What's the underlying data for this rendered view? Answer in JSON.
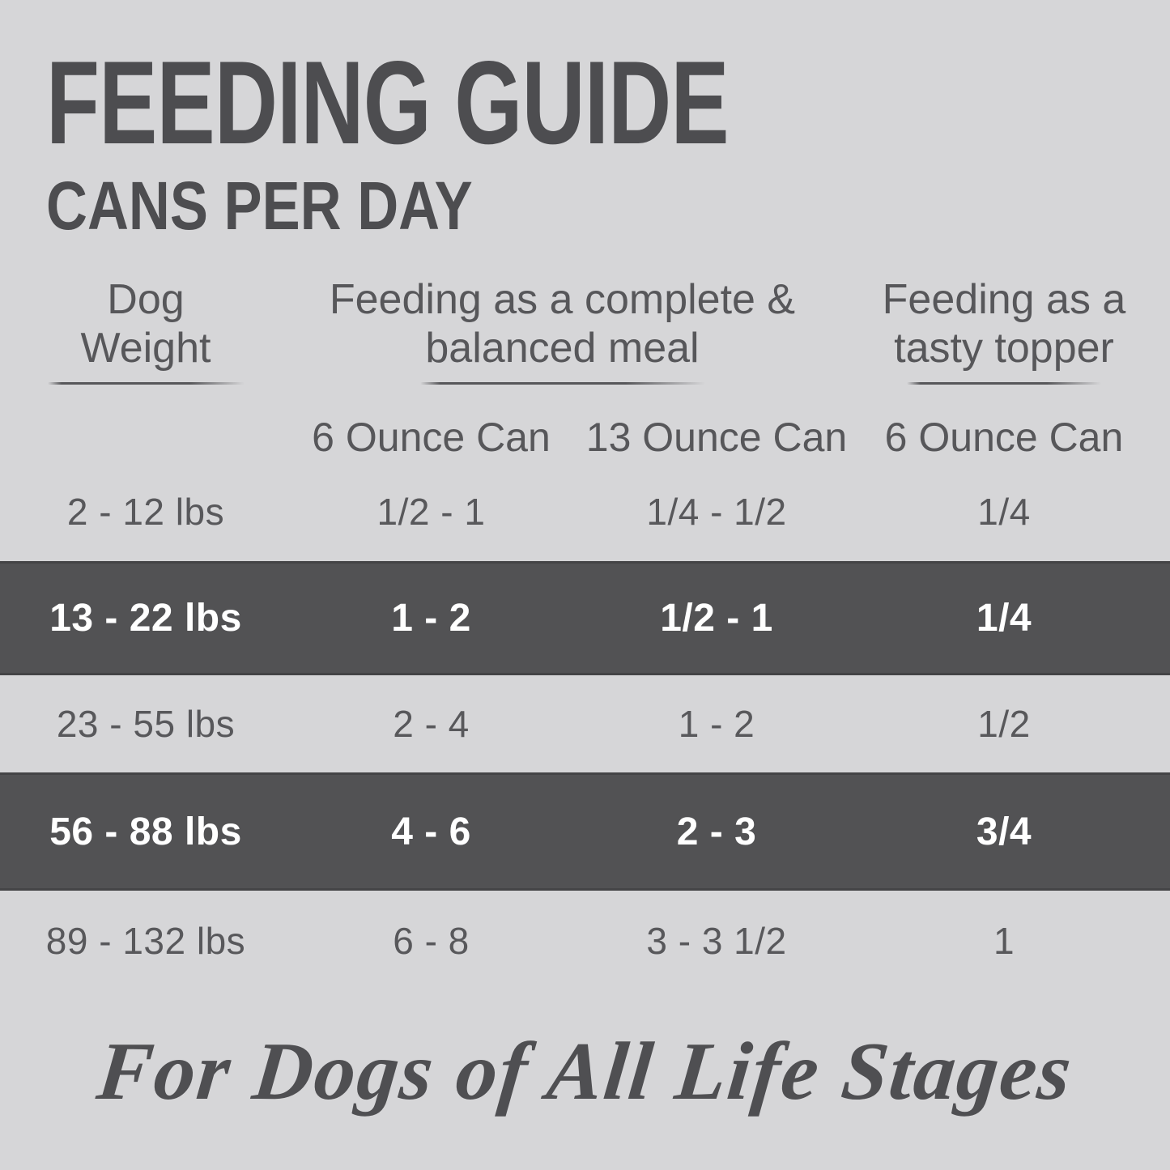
{
  "colors": {
    "background": "#d6d6d8",
    "highlight_band": "#525254",
    "text": "#57575a",
    "title_text": "#4d4d50",
    "band_text": "#ffffff"
  },
  "header": {
    "title": "FEEDING GUIDE",
    "subtitle": "CANS PER DAY"
  },
  "table": {
    "column_groups": [
      {
        "line1": "Dog",
        "line2": "Weight"
      },
      {
        "line1": "Feeding as a complete &",
        "line2": "balanced meal"
      },
      {
        "line1": "Feeding as a",
        "line2": "tasty topper"
      }
    ],
    "subheaders": [
      "6 Ounce Can",
      "13 Ounce Can",
      "6 Ounce Can"
    ],
    "rows": [
      {
        "highlight": false,
        "cells": [
          "2 - 12 lbs",
          "1/2 - 1",
          "1/4 - 1/2",
          "1/4"
        ]
      },
      {
        "highlight": true,
        "cells": [
          "13 - 22 lbs",
          "1 - 2",
          "1/2 - 1",
          "1/4"
        ]
      },
      {
        "highlight": false,
        "cells": [
          "23 - 55 lbs",
          "2 - 4",
          "1 - 2",
          "1/2"
        ]
      },
      {
        "highlight": true,
        "cells": [
          "56 - 88 lbs",
          "4 - 6",
          "2 - 3",
          "3/4"
        ]
      },
      {
        "highlight": false,
        "cells": [
          "89 - 132 lbs",
          "6 - 8",
          "3 - 3 1/2",
          "1"
        ]
      }
    ]
  },
  "footer": {
    "text": "For Dogs of All Life Stages"
  },
  "chart_data": {
    "type": "table",
    "title": "FEEDING GUIDE",
    "subtitle": "CANS PER DAY",
    "columns": [
      "Dog Weight",
      "Feeding as a complete & balanced meal - 6 Ounce Can",
      "Feeding as a complete & balanced meal - 13 Ounce Can",
      "Feeding as a tasty topper - 6 Ounce Can"
    ],
    "rows": [
      [
        "2 - 12 lbs",
        "1/2 - 1",
        "1/4 - 1/2",
        "1/4"
      ],
      [
        "13 - 22 lbs",
        "1 - 2",
        "1/2 - 1",
        "1/4"
      ],
      [
        "23 - 55 lbs",
        "2 - 4",
        "1 - 2",
        "1/2"
      ],
      [
        "56 - 88 lbs",
        "4 - 6",
        "2 - 3",
        "3/4"
      ],
      [
        "89 - 132 lbs",
        "6 - 8",
        "3 - 3 1/2",
        "1"
      ]
    ],
    "highlighted_row_indices": [
      1,
      3
    ],
    "footer": "For Dogs of All Life Stages"
  }
}
